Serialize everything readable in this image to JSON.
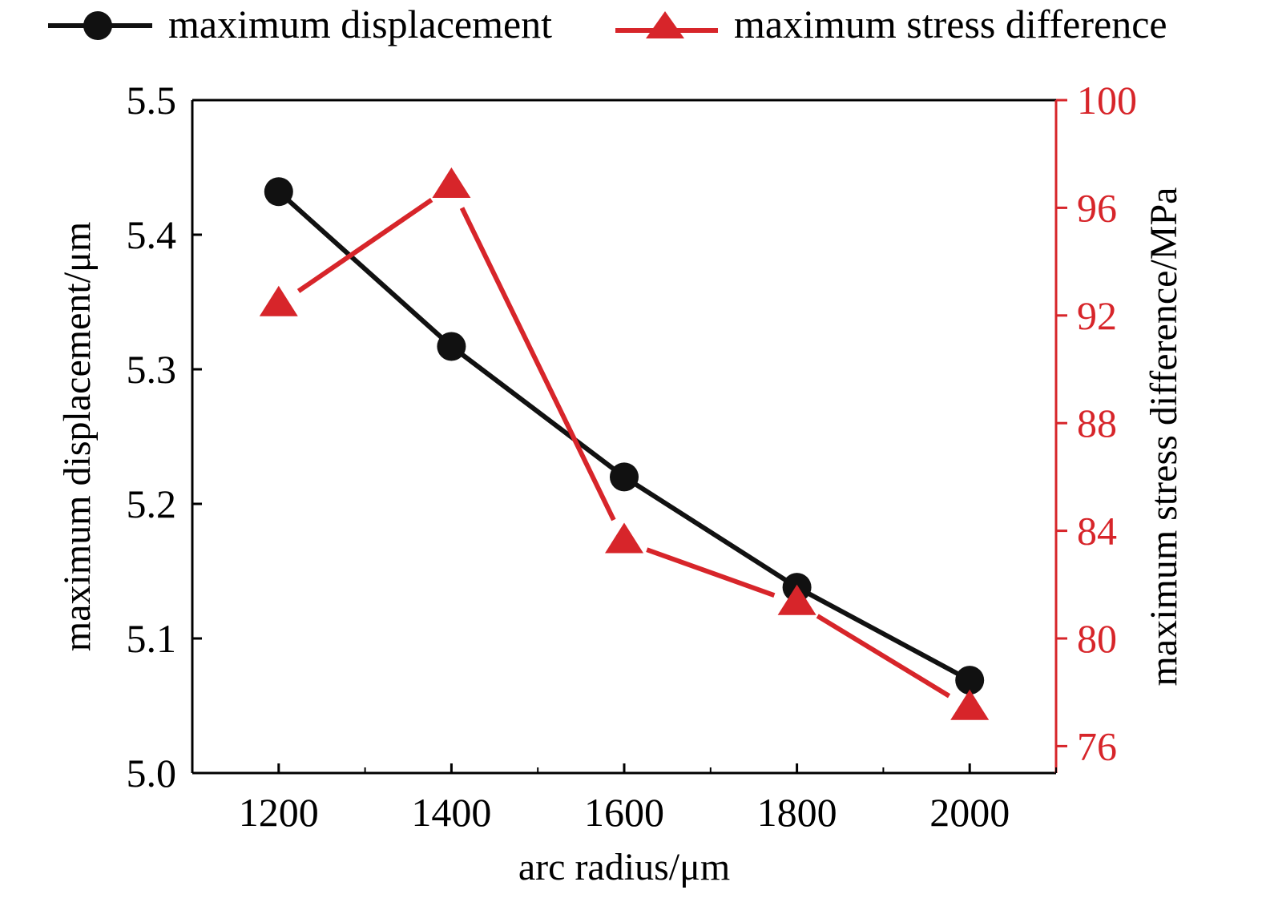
{
  "colors": {
    "displacement": "#111111",
    "stress": "#d7252a",
    "axis_left": "#000000",
    "axis_right": "#d7252a"
  },
  "chart_data": {
    "type": "line",
    "title": "",
    "xlabel": "arc radius/μm",
    "ylabel": "maximum displacement/μm",
    "y2label": "maximum stress difference/MPa",
    "xlim": [
      1100,
      2100
    ],
    "ylim": [
      5.0,
      5.5
    ],
    "y2lim": [
      75,
      100
    ],
    "x_ticks": [
      "1200",
      "1400",
      "1600",
      "1800",
      "2000"
    ],
    "y_ticks": [
      "5.0",
      "5.1",
      "5.2",
      "5.3",
      "5.4",
      "5.5"
    ],
    "y2_ticks": [
      "76",
      "80",
      "84",
      "88",
      "92",
      "96",
      "100"
    ],
    "grid": false,
    "legend_position": "top",
    "series": [
      {
        "name": "maximum displacement",
        "axis": "left",
        "marker": "circle",
        "x": [
          1200,
          1400,
          1600,
          1800,
          2000
        ],
        "values": [
          5.432,
          5.317,
          5.22,
          5.138,
          5.069
        ]
      },
      {
        "name": "maximum stress difference",
        "axis": "right",
        "marker": "triangle",
        "x": [
          1200,
          1400,
          1600,
          1800,
          2000
        ],
        "values": [
          92.4,
          96.8,
          83.6,
          81.3,
          77.4
        ]
      }
    ]
  }
}
